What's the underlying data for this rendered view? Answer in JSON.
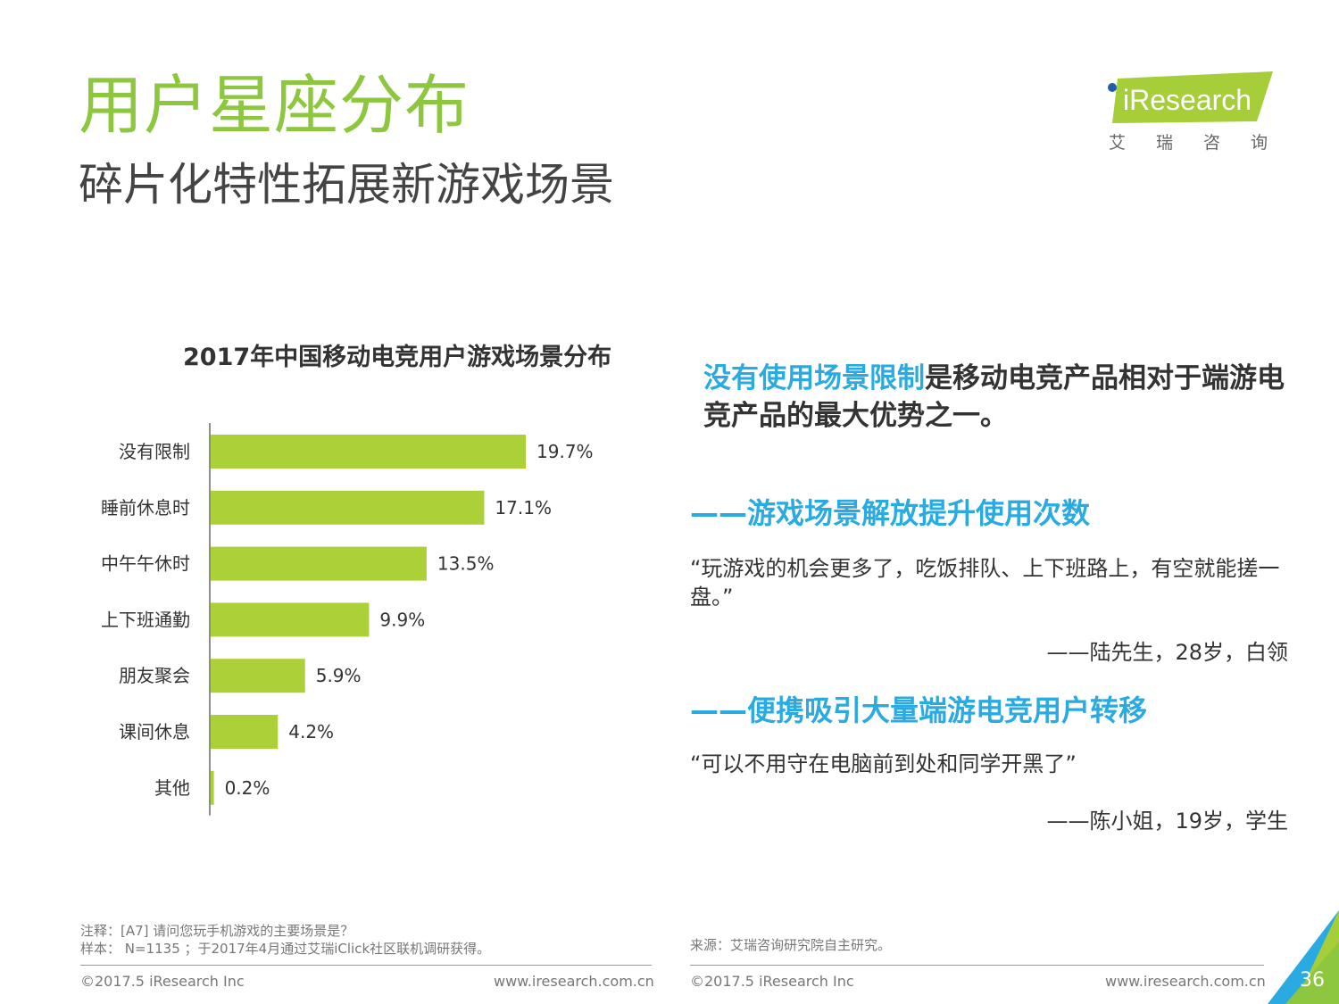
{
  "header": {
    "title": "用户星座分布",
    "subtitle": "碎片化特性拓展新游戏场景",
    "logo_text": "iResearch",
    "logo_cn": [
      "艾",
      "瑞",
      "咨",
      "询"
    ]
  },
  "chart_data": {
    "type": "bar",
    "orientation": "horizontal",
    "title": "2017年中国移动电竞用户游戏场景分布",
    "categories": [
      "没有限制",
      "睡前休息时",
      "中午午休时",
      "上下班通勤",
      "朋友聚会",
      "课间休息",
      "其他"
    ],
    "values": [
      19.7,
      17.1,
      13.5,
      9.9,
      5.9,
      4.2,
      0.2
    ],
    "value_labels": [
      "19.7%",
      "17.1%",
      "13.5%",
      "9.9%",
      "5.9%",
      "4.2%",
      "0.2%"
    ],
    "xlim": [
      0,
      25
    ],
    "bar_color": "#acd037",
    "grid": false,
    "legend": "none"
  },
  "right": {
    "headline_highlight": "没有使用场景限制",
    "headline_rest": "是移动电竞产品相对于端游电竞产品的最大优势之一。",
    "section1_title": "——游戏场景解放提升使用次数",
    "quote1": "“玩游戏的机会更多了，吃饭排队、上下班路上，有空就能搓一盘。”",
    "attrib1": "——陆先生，28岁，白领",
    "section2_title": "——便携吸引大量端游电竞用户转移",
    "quote2": "“可以不用守在电脑前到处和同学开黑了”",
    "attrib2": "——陈小姐，19岁，学生"
  },
  "footer": {
    "note_line1": "注释：[A7] 请问您玩手机游戏的主要场景是？",
    "note_line2": "样本： N=1135 ；于2017年4月通过艾瑞iClick社区联机调研获得。",
    "source": "来源：艾瑞咨询研究院自主研究。",
    "copyright_left": "©2017.5 iResearch Inc",
    "url_left": "www.iresearch.com.cn",
    "copyright_right": "©2017.5 iResearch Inc",
    "url_right": "www.iresearch.com.cn",
    "page_number": "36"
  },
  "colors": {
    "title_green": "#8dc63f",
    "accent_blue": "#29abe2",
    "bar_green": "#acd037"
  }
}
